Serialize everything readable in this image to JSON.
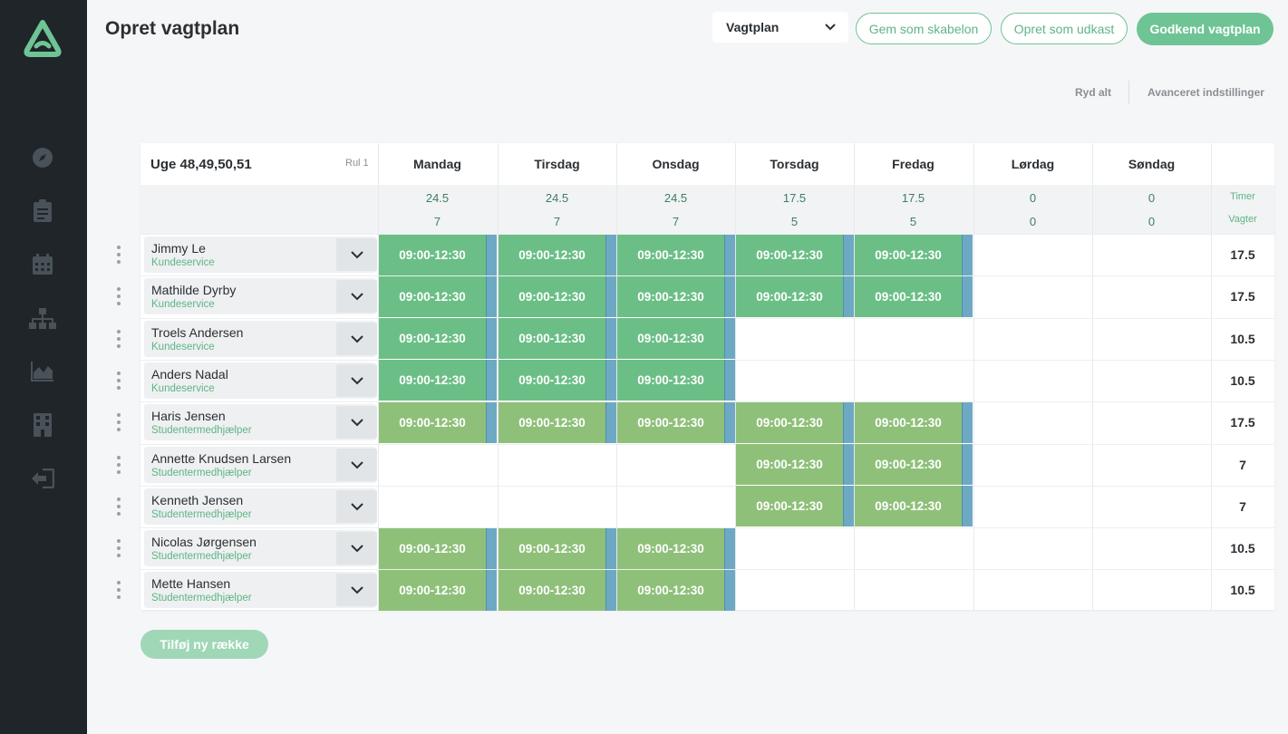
{
  "header": {
    "title": "Opret vagtplan",
    "select_value": "Vagtplan",
    "save_template_label": "Gem som skabelon",
    "save_draft_label": "Opret som udkast",
    "approve_label": "Godkend vagtplan",
    "clear_all_label": "Ryd alt",
    "advanced_label": "Avanceret indstillinger"
  },
  "sidebar": {
    "items": [
      {
        "icon": "compass-icon"
      },
      {
        "icon": "clipboard-icon"
      },
      {
        "icon": "calendar-icon"
      },
      {
        "icon": "org-chart-icon"
      },
      {
        "icon": "area-chart-icon"
      },
      {
        "icon": "building-icon"
      },
      {
        "icon": "logout-icon"
      }
    ]
  },
  "table": {
    "week_label": "Uge 48,49,50,51",
    "rul_label": "Rul 1",
    "days": [
      "Mandag",
      "Tirsdag",
      "Onsdag",
      "Torsdag",
      "Fredag",
      "Lørdag",
      "Søndag"
    ],
    "hours": [
      "24.5",
      "24.5",
      "24.5",
      "17.5",
      "17.5",
      "0",
      "0"
    ],
    "shift_counts": [
      "7",
      "7",
      "7",
      "5",
      "5",
      "0",
      "0"
    ],
    "hours_label": "Timer",
    "shifts_label": "Vagter",
    "rows": [
      {
        "name": "Jimmy Le",
        "dept": "Kundeservice",
        "shifts": [
          "09:00-12:30",
          "09:00-12:30",
          "09:00-12:30",
          "09:00-12:30",
          "09:00-12:30",
          "",
          ""
        ],
        "total": "17.5"
      },
      {
        "name": "Mathilde Dyrby",
        "dept": "Kundeservice",
        "shifts": [
          "09:00-12:30",
          "09:00-12:30",
          "09:00-12:30",
          "09:00-12:30",
          "09:00-12:30",
          "",
          ""
        ],
        "total": "17.5"
      },
      {
        "name": "Troels Andersen",
        "dept": "Kundeservice",
        "shifts": [
          "09:00-12:30",
          "09:00-12:30",
          "09:00-12:30",
          "",
          "",
          "",
          ""
        ],
        "total": "10.5"
      },
      {
        "name": "Anders Nadal",
        "dept": "Kundeservice",
        "shifts": [
          "09:00-12:30",
          "09:00-12:30",
          "09:00-12:30",
          "",
          "",
          "",
          ""
        ],
        "total": "10.5"
      },
      {
        "name": "Haris Jensen",
        "dept": "Studentermedhjælper",
        "shifts": [
          "09:00-12:30",
          "09:00-12:30",
          "09:00-12:30",
          "09:00-12:30",
          "09:00-12:30",
          "",
          ""
        ],
        "total": "17.5"
      },
      {
        "name": "Annette Knudsen Larsen",
        "dept": "Studentermedhjælper",
        "shifts": [
          "",
          "",
          "",
          "09:00-12:30",
          "09:00-12:30",
          "",
          ""
        ],
        "total": "7"
      },
      {
        "name": "Kenneth Jensen",
        "dept": "Studentermedhjælper",
        "shifts": [
          "",
          "",
          "",
          "09:00-12:30",
          "09:00-12:30",
          "",
          ""
        ],
        "total": "7"
      },
      {
        "name": "Nicolas Jørgensen",
        "dept": "Studentermedhjælper",
        "shifts": [
          "09:00-12:30",
          "09:00-12:30",
          "09:00-12:30",
          "",
          "",
          "",
          ""
        ],
        "total": "10.5"
      },
      {
        "name": "Mette Hansen",
        "dept": "Studentermedhjælper",
        "shifts": [
          "09:00-12:30",
          "09:00-12:30",
          "09:00-12:30",
          "",
          "",
          "",
          ""
        ],
        "total": "10.5"
      }
    ]
  },
  "add_row_label": "Tilføj ny række",
  "colors": {
    "accent": "#6ec494",
    "shift_kundeservice": "#6bbf86",
    "shift_student": "#8fc07a",
    "shift_bar": "#6ea9c4",
    "sidebar_bg": "#1f2529"
  }
}
